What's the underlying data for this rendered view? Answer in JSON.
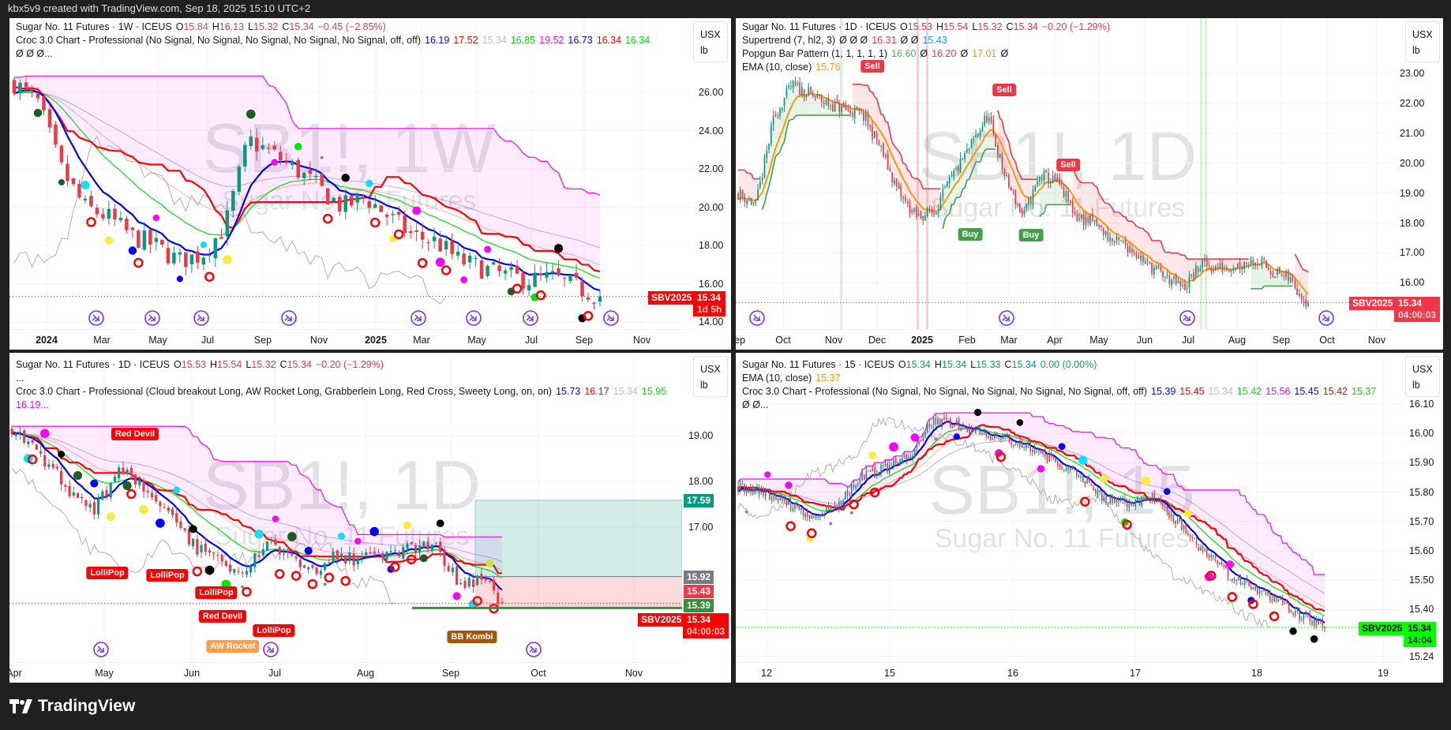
{
  "credit": "kbx5v9 created with TradingView.com, Sep 18, 2025 15:10 UTC+2",
  "footer_logo": "TradingView",
  "colors": {
    "up": "#089981",
    "down": "#f23645",
    "croc_blue": "#0000ff",
    "croc_red": "#ff0000",
    "croc_green": "#00e600",
    "croc_magenta": "#ff00ff",
    "ema": "#ff9800",
    "signal_icon": "#7b2ff7"
  },
  "panels": [
    {
      "id": "tl",
      "watermark": "SB1!, 1W",
      "watermark_sub": "Sugar No. 11 Futures",
      "unit": {
        "currency": "USX",
        "unit": "lb"
      },
      "legend": [
        [
          {
            "t": "Sugar No. 11 Futures · 1W · ICEUS",
            "c": "#131722"
          },
          {
            "t": "O",
            "c": "#131722",
            "k": 1
          },
          {
            "t": "15.84",
            "c": "#f23645"
          },
          {
            "t": "H",
            "c": "#131722",
            "k": 1
          },
          {
            "t": "16.13",
            "c": "#f23645"
          },
          {
            "t": "L",
            "c": "#131722",
            "k": 1
          },
          {
            "t": "15.32",
            "c": "#f23645"
          },
          {
            "t": "C",
            "c": "#131722",
            "k": 1
          },
          {
            "t": "15.34",
            "c": "#f23645"
          },
          {
            "t": "−0.45 (−2.85%)",
            "c": "#f23645"
          }
        ],
        [
          {
            "t": "Croc 3.0 Chart - Professional (No Signal, No Signal, No Signal, No Signal, No Signal, off, off)",
            "c": "#131722"
          },
          {
            "t": "16.19",
            "c": "#0000ff"
          },
          {
            "t": "17.52",
            "c": "#ff0000"
          },
          {
            "t": "15.34",
            "c": "#c0c0c0"
          },
          {
            "t": "16.85",
            "c": "#00e600"
          },
          {
            "t": "19.52",
            "c": "#ff00ff"
          },
          {
            "t": "16.73",
            "c": "#0000ff"
          },
          {
            "t": "16.34",
            "c": "#ff0000"
          },
          {
            "t": "16.34",
            "c": "#00e600"
          },
          {
            "t": "Ø  Ø  Ø...",
            "c": "#131722"
          }
        ]
      ],
      "y_ticks": [
        "26.00",
        "24.00",
        "22.00",
        "20.00",
        "18.00",
        "16.00",
        "14.00"
      ],
      "x_ticks": [
        "2024",
        "Mar",
        "May",
        "Jul",
        "Sep",
        "Nov",
        "2025",
        "Mar",
        "May",
        "Jul",
        "Sep",
        "Nov"
      ],
      "symbol_tag": "SBV2025",
      "last_price": "15.34",
      "countdown": "1d 5h",
      "chart_data": {
        "type": "candlestick",
        "interval": "1W",
        "approx_close_path": [
          26.5,
          25.5,
          22,
          20,
          19.5,
          18.5,
          18,
          17.2,
          17.5,
          19,
          23.5,
          22.8,
          22,
          21,
          20,
          20.5,
          19.5,
          18.5,
          18.2,
          17.2,
          16.8,
          16.4,
          16.2,
          16.3,
          15.8,
          15.34
        ],
        "ylim": [
          13.6,
          29.8
        ]
      }
    },
    {
      "id": "tr",
      "watermark": "SB1!, 1D",
      "watermark_sub": "Sugar No. 11 Futures",
      "unit": {
        "currency": "USX",
        "unit": "lb"
      },
      "legend": [
        [
          {
            "t": "Sugar No. 11 Futures · 1D · ICEUS",
            "c": "#131722"
          },
          {
            "t": "O",
            "c": "#131722",
            "k": 1
          },
          {
            "t": "15.53",
            "c": "#f23645"
          },
          {
            "t": "H",
            "c": "#131722",
            "k": 1
          },
          {
            "t": "15.54",
            "c": "#f23645"
          },
          {
            "t": "L",
            "c": "#131722",
            "k": 1
          },
          {
            "t": "15.32",
            "c": "#f23645"
          },
          {
            "t": "C",
            "c": "#131722",
            "k": 1
          },
          {
            "t": "15.34",
            "c": "#f23645"
          },
          {
            "t": "−0.20 (−1.29%)",
            "c": "#f23645"
          }
        ],
        [
          {
            "t": "Supertrend (7, hl2, 3)",
            "c": "#131722"
          },
          {
            "t": "Ø  Ø  Ø",
            "c": "#131722"
          },
          {
            "t": "16.31",
            "c": "#f23645"
          },
          {
            "t": "Ø  Ø",
            "c": "#131722"
          },
          {
            "t": "15.43",
            "c": "#2196f3"
          }
        ],
        [
          {
            "t": "Popgun Bar Pattern (1, 1, 1, 1, 1)",
            "c": "#131722"
          },
          {
            "t": "16.60",
            "c": "#4caf50"
          },
          {
            "t": "Ø",
            "c": "#131722"
          },
          {
            "t": "16.20",
            "c": "#f23645"
          },
          {
            "t": "Ø",
            "c": "#131722"
          },
          {
            "t": "17.01",
            "c": "#ff9800"
          },
          {
            "t": "Ø",
            "c": "#131722"
          }
        ],
        [
          {
            "t": "EMA (10, close)",
            "c": "#131722"
          },
          {
            "t": "15.76",
            "c": "#ff9800"
          }
        ]
      ],
      "y_ticks": [
        "23.00",
        "22.00",
        "21.00",
        "20.00",
        "19.00",
        "18.00",
        "17.00",
        "16.00"
      ],
      "x_ticks": [
        "Sep",
        "Oct",
        "Nov",
        "Dec",
        "2025",
        "Feb",
        "Mar",
        "Apr",
        "May",
        "Jun",
        "Jul",
        "Aug",
        "Sep",
        "Oct",
        "Nov"
      ],
      "signals": [
        "Sell",
        "Sell",
        "Sell",
        "Buy",
        "Buy"
      ],
      "symbol_tag": "SBV2025",
      "last_price": "15.34",
      "countdown": "04:00:03",
      "chart_data": {
        "type": "candlestick",
        "interval": "1D",
        "approx_close_path": [
          19,
          18.6,
          21.5,
          22.6,
          22.3,
          22,
          21.8,
          21.6,
          20.5,
          19,
          18.2,
          18.4,
          19.5,
          20.5,
          21.6,
          19.5,
          18.2,
          19.6,
          19.3,
          18.2,
          18,
          17.4,
          17.2,
          16.6,
          16.2,
          15.8,
          16.6,
          16.5,
          16.6,
          16.8,
          16.4,
          16.1,
          15.34
        ],
        "ylim": [
          14.4,
          24.8
        ]
      }
    },
    {
      "id": "bl",
      "watermark": "SB1!, 1D",
      "watermark_sub": "Sugar No. 11 Futures",
      "unit": {
        "currency": "USX",
        "unit": "lb"
      },
      "legend": [
        [
          {
            "t": "Sugar No. 11 Futures · 1D · ICEUS",
            "c": "#131722"
          },
          {
            "t": "O",
            "c": "#131722",
            "k": 1
          },
          {
            "t": "15.53",
            "c": "#f23645"
          },
          {
            "t": "H",
            "c": "#131722",
            "k": 1
          },
          {
            "t": "15.54",
            "c": "#f23645"
          },
          {
            "t": "L",
            "c": "#131722",
            "k": 1
          },
          {
            "t": "15.32",
            "c": "#f23645"
          },
          {
            "t": "C",
            "c": "#131722",
            "k": 1
          },
          {
            "t": "15.34",
            "c": "#f23645"
          },
          {
            "t": "−0.20 (−1.29%)",
            "c": "#f23645"
          }
        ],
        [
          {
            "t": "...",
            "c": "#131722"
          }
        ],
        [
          {
            "t": "Croc 3.0 Chart - Professional (Cloud breakout Long, AW Rocket Long, Grabberlein Long, Red Cross, Sweety Long, on, on)",
            "c": "#131722"
          },
          {
            "t": "15.73",
            "c": "#0000ff"
          },
          {
            "t": "16.17",
            "c": "#ff0000"
          },
          {
            "t": "15.34",
            "c": "#c0c0c0"
          },
          {
            "t": "15.95",
            "c": "#00e600"
          },
          {
            "t": "16.19...",
            "c": "#ff00ff"
          }
        ]
      ],
      "y_ticks": [
        "19.00",
        "18.00",
        "17.00"
      ],
      "x_ticks": [
        "Apr",
        "May",
        "Jun",
        "Jul",
        "Aug",
        "Sep",
        "Oct",
        "Nov"
      ],
      "signals": [
        "Red Devil",
        "LolliPop",
        "LolliPop",
        "LolliPop",
        "Red Devil",
        "LolliPop",
        "AW Rocket",
        "BB Kombi"
      ],
      "position_tool": {
        "target": "17.59",
        "entry": "15.92",
        "stop": "15.43",
        "avg": "15.39"
      },
      "symbol_tag": "SBV2025",
      "last_price": "15.34",
      "countdown": "04:00:03",
      "chart_data": {
        "type": "candlestick",
        "interval": "1D",
        "approx_close_path": [
          19.2,
          18.8,
          18.2,
          17.6,
          17.4,
          18.3,
          18.0,
          17.4,
          16.9,
          16.4,
          16.2,
          16.0,
          16.7,
          16.3,
          16.0,
          16.4,
          16.3,
          16.5,
          16.4,
          16.6,
          16.5,
          15.7,
          15.9,
          15.34
        ],
        "ylim": [
          14.0,
          20.8
        ]
      }
    },
    {
      "id": "br",
      "watermark": "SB1!, 15",
      "watermark_sub": "Sugar No. 11 Futures",
      "unit": {
        "currency": "USX",
        "unit": "lb"
      },
      "legend": [
        [
          {
            "t": "Sugar No. 11 Futures · 15 · ICEUS",
            "c": "#131722"
          },
          {
            "t": "O",
            "c": "#131722",
            "k": 1
          },
          {
            "t": "15.34",
            "c": "#089981"
          },
          {
            "t": "H",
            "c": "#131722",
            "k": 1
          },
          {
            "t": "15.34",
            "c": "#089981"
          },
          {
            "t": "L",
            "c": "#131722",
            "k": 1
          },
          {
            "t": "15.33",
            "c": "#089981"
          },
          {
            "t": "C",
            "c": "#131722",
            "k": 1
          },
          {
            "t": "15.34",
            "c": "#089981"
          },
          {
            "t": "0.00 (0.00%)",
            "c": "#089981"
          }
        ],
        [
          {
            "t": "EMA (10, close)",
            "c": "#131722"
          },
          {
            "t": "15.37",
            "c": "#ff9800"
          }
        ],
        [
          {
            "t": "Croc 3.0 Chart - Professional (No Signal, No Signal, No Signal, No Signal, No Signal, off, off)",
            "c": "#131722"
          },
          {
            "t": "15.39",
            "c": "#0000ff"
          },
          {
            "t": "15.45",
            "c": "#ff0000"
          },
          {
            "t": "15.34",
            "c": "#c0c0c0"
          },
          {
            "t": "15.42",
            "c": "#00e600"
          },
          {
            "t": "15.56",
            "c": "#ff00ff"
          },
          {
            "t": "15.45",
            "c": "#0000ff"
          },
          {
            "t": "15.42",
            "c": "#ff0000"
          },
          {
            "t": "15.37",
            "c": "#00e600"
          },
          {
            "t": "Ø  Ø...",
            "c": "#131722"
          }
        ]
      ],
      "y_ticks": [
        "16.10",
        "16.00",
        "15.90",
        "15.80",
        "15.70",
        "15.60",
        "15.50",
        "15.40",
        "15.24"
      ],
      "x_ticks": [
        "12",
        "15",
        "16",
        "17",
        "18",
        "19"
      ],
      "symbol_tag": "SBV2025",
      "last_price": "15.34",
      "countdown": "14:04",
      "chart_data": {
        "type": "candlestick",
        "interval": "15",
        "approx_close_path": [
          15.82,
          15.8,
          15.76,
          15.72,
          15.75,
          15.85,
          15.88,
          15.92,
          16.05,
          16.03,
          16.0,
          15.98,
          15.95,
          15.9,
          15.85,
          15.78,
          15.76,
          15.78,
          15.7,
          15.6,
          15.52,
          15.48,
          15.44,
          15.38,
          15.34
        ],
        "ylim": [
          15.22,
          16.27
        ]
      }
    }
  ]
}
